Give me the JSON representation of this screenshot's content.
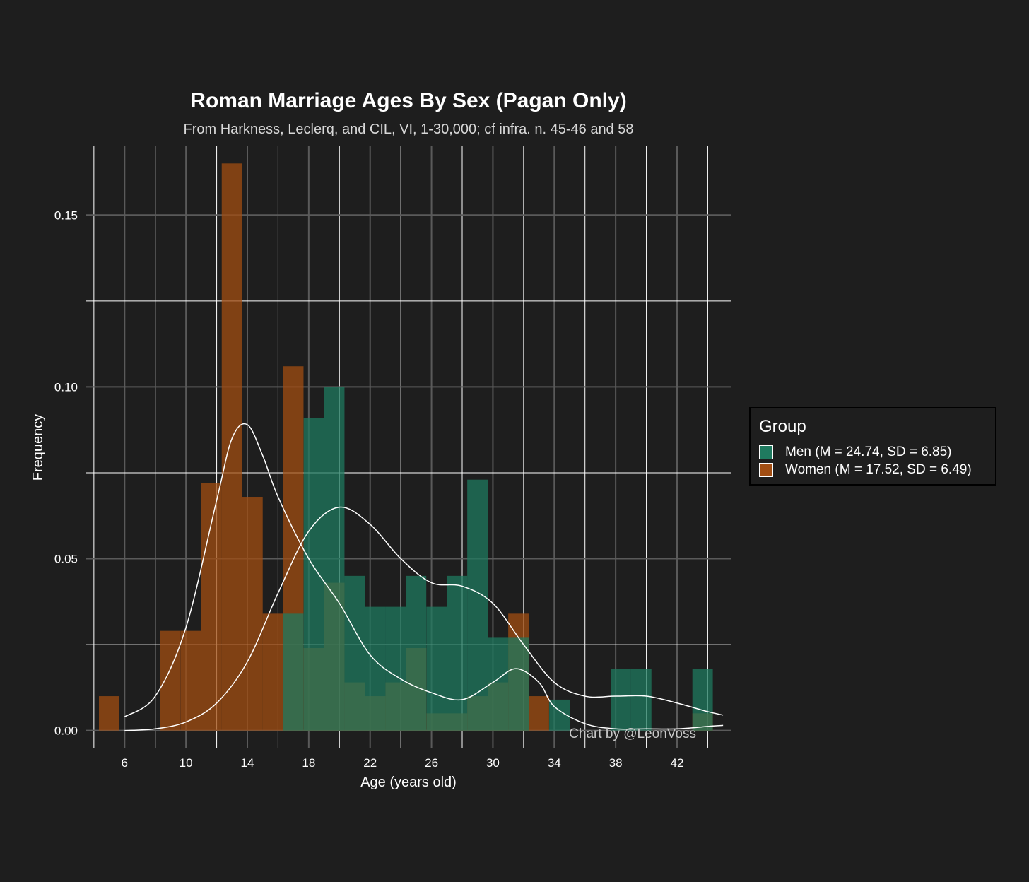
{
  "colors": {
    "background": "#1e1e1e",
    "men": "#1f7a5f",
    "women": "#a14d12",
    "density_line": "#ffffff",
    "grid_major": "#5a5a5a",
    "grid_minor": "#ffffff"
  },
  "chart_data": {
    "type": "histogram",
    "title": "Roman Marriage Ages By Sex (Pagan Only)",
    "subtitle": "From Harkness, Leclerq, and CIL, VI, 1-30,000; cf infra. n. 45-46 and 58",
    "xlabel": "Age (years old)",
    "ylabel": "Frequency",
    "caption": "Chart by @LeonVoss",
    "xlim": [
      3.5,
      45.5
    ],
    "ylim": [
      -0.005,
      0.17
    ],
    "x_ticks": [
      6,
      10,
      14,
      18,
      22,
      26,
      30,
      34,
      38,
      42
    ],
    "y_ticks": [
      0.0,
      0.05,
      0.1,
      0.15
    ],
    "y_tick_labels": [
      "0.00",
      "0.05",
      "0.10",
      "0.15"
    ],
    "bin_width": 1.33,
    "grid": true,
    "legend": {
      "title": "Group",
      "position": "right",
      "entries": [
        {
          "label": "Men (M = 24.74, SD = 6.85)",
          "color": "#1f7a5f"
        },
        {
          "label": "Women (M = 17.52, SD = 6.49)",
          "color": "#a14d12"
        }
      ]
    },
    "series": [
      {
        "name": "Men (M = 24.74, SD = 6.85)",
        "color": "#1f7a5f",
        "bins": [
          [
            16.33,
            0.034
          ],
          [
            17.67,
            0.091
          ],
          [
            19.0,
            0.1
          ],
          [
            20.33,
            0.045
          ],
          [
            21.67,
            0.036
          ],
          [
            23.0,
            0.036
          ],
          [
            24.33,
            0.045
          ],
          [
            25.67,
            0.036
          ],
          [
            27.0,
            0.045
          ],
          [
            28.33,
            0.073
          ],
          [
            29.67,
            0.027
          ],
          [
            31.0,
            0.027
          ],
          [
            33.67,
            0.009
          ],
          [
            37.67,
            0.018
          ],
          [
            39.0,
            0.018
          ],
          [
            43.0,
            0.018
          ]
        ],
        "density": [
          [
            6,
            0.0
          ],
          [
            8,
            0.0005
          ],
          [
            10,
            0.0025
          ],
          [
            12,
            0.008
          ],
          [
            14,
            0.02
          ],
          [
            16,
            0.04
          ],
          [
            18,
            0.058
          ],
          [
            20,
            0.065
          ],
          [
            22,
            0.06
          ],
          [
            24,
            0.05
          ],
          [
            26,
            0.043
          ],
          [
            28,
            0.042
          ],
          [
            30,
            0.037
          ],
          [
            32,
            0.025
          ],
          [
            34,
            0.014
          ],
          [
            36,
            0.01
          ],
          [
            38,
            0.01
          ],
          [
            40,
            0.01
          ],
          [
            42,
            0.008
          ],
          [
            44,
            0.0055
          ],
          [
            45,
            0.0045
          ]
        ]
      },
      {
        "name": "Women (M = 17.52, SD = 6.49)",
        "color": "#a14d12",
        "bins": [
          [
            4.33,
            0.01
          ],
          [
            8.33,
            0.029
          ],
          [
            9.67,
            0.029
          ],
          [
            11.0,
            0.072
          ],
          [
            12.33,
            0.165
          ],
          [
            13.67,
            0.068
          ],
          [
            15.0,
            0.034
          ],
          [
            16.33,
            0.106
          ],
          [
            17.67,
            0.024
          ],
          [
            19.0,
            0.043
          ],
          [
            20.33,
            0.014
          ],
          [
            21.67,
            0.01
          ],
          [
            23.0,
            0.014
          ],
          [
            24.33,
            0.024
          ],
          [
            25.67,
            0.005
          ],
          [
            27.0,
            0.005
          ],
          [
            28.33,
            0.01
          ],
          [
            29.67,
            0.014
          ],
          [
            31.0,
            0.034
          ],
          [
            32.33,
            0.01
          ],
          [
            43.0,
            0.005
          ]
        ],
        "density": [
          [
            6,
            0.004
          ],
          [
            8,
            0.01
          ],
          [
            10,
            0.03
          ],
          [
            12,
            0.067
          ],
          [
            13,
            0.085
          ],
          [
            14,
            0.089
          ],
          [
            15,
            0.08
          ],
          [
            16,
            0.068
          ],
          [
            18,
            0.05
          ],
          [
            20,
            0.037
          ],
          [
            22,
            0.022
          ],
          [
            24,
            0.015
          ],
          [
            26,
            0.011
          ],
          [
            28,
            0.009
          ],
          [
            30,
            0.014
          ],
          [
            31.5,
            0.018
          ],
          [
            33,
            0.014
          ],
          [
            34,
            0.007
          ],
          [
            36,
            0.002
          ],
          [
            38,
            0.0005
          ],
          [
            40,
            0.0005
          ],
          [
            42,
            0.0005
          ],
          [
            44,
            0.0012
          ],
          [
            45,
            0.0015
          ]
        ]
      }
    ]
  }
}
